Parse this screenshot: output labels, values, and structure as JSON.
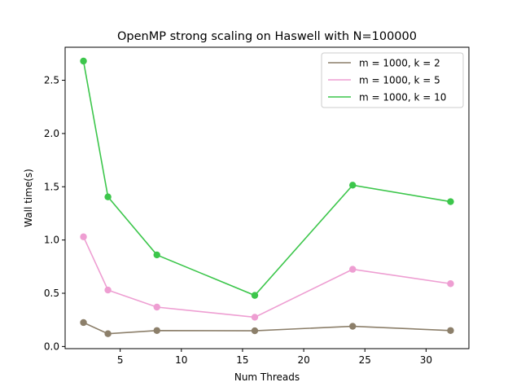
{
  "chart_data": {
    "type": "line",
    "title": "OpenMP strong scaling on Haswell with N=100000",
    "xlabel": "Num Threads",
    "ylabel": "Wall time(s)",
    "xlim": [
      0.5,
      33.5
    ],
    "ylim": [
      -0.02,
      2.81
    ],
    "xticks": [
      5,
      10,
      15,
      20,
      25,
      30
    ],
    "xtick_labels": [
      "5",
      "10",
      "15",
      "20",
      "25",
      "30"
    ],
    "yticks": [
      0.0,
      0.5,
      1.0,
      1.5,
      2.0,
      2.5
    ],
    "ytick_labels": [
      "0.0",
      "0.5",
      "1.0",
      "1.5",
      "2.0",
      "2.5"
    ],
    "grid": false,
    "legend_position": "top-right",
    "x": [
      2,
      4,
      8,
      16,
      24,
      32
    ],
    "series": [
      {
        "name": "m = 1000, k = 2",
        "color": "#8c7f6a",
        "values": [
          0.225,
          0.12,
          0.15,
          0.148,
          0.19,
          0.15
        ]
      },
      {
        "name": "m = 1000, k = 5",
        "color": "#ee9ed2",
        "values": [
          1.03,
          0.53,
          0.37,
          0.275,
          0.725,
          0.59
        ]
      },
      {
        "name": "m = 1000, k = 10",
        "color": "#3cc64b",
        "values": [
          2.68,
          1.405,
          0.86,
          0.48,
          1.515,
          1.36
        ]
      }
    ]
  }
}
